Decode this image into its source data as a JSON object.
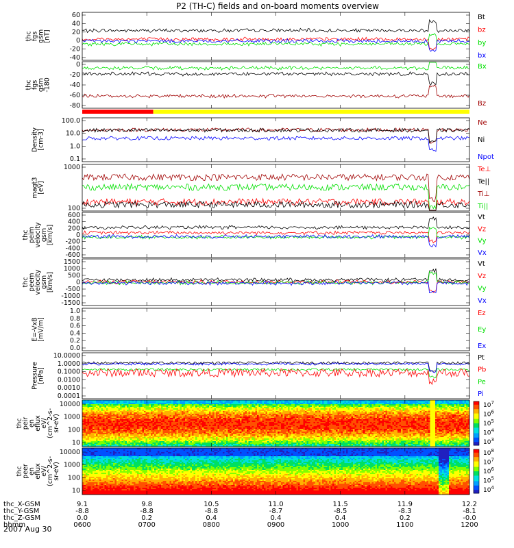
{
  "chart_data": {
    "type": "line",
    "title": "P2 (TH-C) fields and on-board moments overview",
    "colors": {
      "black": "#000000",
      "red": "#ff0000",
      "darkred": "#a00000",
      "green": "#00e000",
      "blue": "#0000ff",
      "yellow": "#ffff00"
    },
    "time": {
      "hours": [
        6,
        7,
        8,
        9,
        10,
        11,
        12
      ],
      "labels": [
        "0600",
        "0700",
        "0800",
        "0900",
        "1000",
        "1100",
        "1200"
      ]
    },
    "panels": [
      {
        "id": "fgs",
        "ylabel": [
          "thc",
          "fgs",
          "gsm",
          "[nT]"
        ],
        "yticks": [
          "60",
          "40",
          "20",
          "0",
          "-20",
          "-40"
        ],
        "ylim": [
          -40,
          60
        ],
        "legend": [
          {
            "label": "Bt",
            "color": "black"
          },
          {
            "label": "bz",
            "color": "red"
          },
          {
            "label": "by",
            "color": "green"
          },
          {
            "label": "bx",
            "color": "blue"
          }
        ],
        "series": [
          {
            "name": "Bt",
            "level": 22
          },
          {
            "name": "bz",
            "level": 4
          },
          {
            "name": "by",
            "level": -6
          },
          {
            "name": "bx",
            "level": 0
          }
        ]
      },
      {
        "id": "fgs_angle",
        "ylabel": [
          "thc",
          "fgs",
          "gsm",
          "-180"
        ],
        "yticks": [
          "0",
          "-20",
          "-40",
          "-60",
          "-80"
        ],
        "ylim": [
          -90,
          5
        ],
        "legend": [
          {
            "label": "Bx",
            "color": "green"
          },
          {
            "label": "Bz",
            "color": "darkred"
          }
        ],
        "series": [
          {
            "name": "Bx",
            "level": -8
          },
          {
            "name": "Bx2",
            "level": -20
          },
          {
            "name": "Bz",
            "level": -65
          }
        ]
      },
      {
        "id": "density",
        "ylabel": [
          "Density",
          "[cm-3]"
        ],
        "yticks": [
          "100.0",
          "10.0",
          "1.0",
          "0.1"
        ],
        "ylim": [
          0.1,
          100
        ],
        "log": true,
        "legend": [
          {
            "label": "Ne",
            "color": "darkred"
          },
          {
            "label": "Ni",
            "color": "black"
          },
          {
            "label": "Npot",
            "color": "blue"
          }
        ],
        "series": [
          {
            "name": "Ne",
            "level": 15
          },
          {
            "name": "Ni",
            "level": 14
          },
          {
            "name": "Npot",
            "level": 4
          }
        ]
      },
      {
        "id": "temperature",
        "ylabel": [
          "magt3",
          "[eV]"
        ],
        "yticks": [
          "1000",
          "100"
        ],
        "ylim": [
          40,
          2500
        ],
        "log": true,
        "legend": [
          {
            "label": "Te⊥",
            "color": "red"
          },
          {
            "label": "Te||",
            "color": "black"
          },
          {
            "label": "Ti⊥",
            "color": "darkred"
          },
          {
            "label": "Ti||",
            "color": "green"
          }
        ],
        "series": [
          {
            "name": "Ti⊥",
            "level": 800
          },
          {
            "name": "Ti||",
            "level": 330
          },
          {
            "name": "Te⊥",
            "level": 90
          },
          {
            "name": "Te||",
            "level": 70
          }
        ]
      },
      {
        "id": "peim_velocity",
        "ylabel": [
          "thc",
          "peim",
          "velocity",
          "gsm",
          "[km/s]"
        ],
        "yticks": [
          "600",
          "400",
          "200",
          "0",
          "-200",
          "-400",
          "-600"
        ],
        "ylim": [
          -600,
          600
        ],
        "legend": [
          {
            "label": "Vt",
            "color": "black"
          },
          {
            "label": "Vz",
            "color": "red"
          },
          {
            "label": "Vy",
            "color": "green"
          },
          {
            "label": "Vx",
            "color": "blue"
          }
        ],
        "series": [
          {
            "name": "Vt",
            "level": 200
          },
          {
            "name": "Vz",
            "level": 60
          },
          {
            "name": "Vy",
            "level": -60
          },
          {
            "name": "Vx",
            "level": -40
          }
        ]
      },
      {
        "id": "peem_velocity",
        "ylabel": [
          "thc",
          "peem",
          "velocity",
          "gsm",
          "[km/s]"
        ],
        "yticks": [
          "1500",
          "1000",
          "500",
          "0",
          "-500",
          "-1000",
          "-1500"
        ],
        "ylim": [
          -1500,
          1500
        ],
        "legend": [
          {
            "label": "Vt",
            "color": "black"
          },
          {
            "label": "Vz",
            "color": "red"
          },
          {
            "label": "Vy",
            "color": "green"
          },
          {
            "label": "Vx",
            "color": "blue"
          }
        ],
        "series": [
          {
            "name": "Vt",
            "level": 150
          },
          {
            "name": "Vz",
            "level": 20
          },
          {
            "name": "Vy",
            "level": -30
          },
          {
            "name": "Vx",
            "level": -60
          }
        ]
      },
      {
        "id": "efield",
        "ylabel": [
          "E=-VxB",
          "[mV/m]"
        ],
        "yticks": [
          "1.0",
          "0.8",
          "0.6",
          "0.4",
          "0.2",
          "0.0"
        ],
        "ylim": [
          0,
          1
        ],
        "legend": [
          {
            "label": "Ez",
            "color": "red"
          },
          {
            "label": "Ey",
            "color": "green"
          },
          {
            "label": "Ex",
            "color": "blue"
          }
        ],
        "series": []
      },
      {
        "id": "pressure",
        "ylabel": [
          "Pressure",
          "[nPa]"
        ],
        "yticks": [
          "10.0000",
          "1.0000",
          "0.1000",
          "0.0100",
          "0.0010",
          "0.0001"
        ],
        "ylim": [
          0.0001,
          10
        ],
        "log": true,
        "legend": [
          {
            "label": "Pt",
            "color": "black"
          },
          {
            "label": "Pb",
            "color": "red"
          },
          {
            "label": "Pe",
            "color": "green"
          },
          {
            "label": "Pi",
            "color": "blue"
          }
        ],
        "series": [
          {
            "name": "Pt",
            "level": 0.8
          },
          {
            "name": "Pi",
            "level": 0.6
          },
          {
            "name": "Pe",
            "level": 0.15
          },
          {
            "name": "Pb",
            "level": 0.1
          }
        ]
      },
      {
        "id": "peir_eflux",
        "type": "heatmap",
        "ylabel": [
          "thc",
          "peir",
          "en",
          "eflux",
          "eV/",
          "(cm^2-s-",
          "sr-eV)"
        ],
        "yticks": [
          "10000",
          "1000",
          "100",
          "10"
        ],
        "colorbar": [
          "10^7",
          "10^6",
          "10^5",
          "10^4",
          "10^3"
        ]
      },
      {
        "id": "peer_eflux",
        "type": "heatmap",
        "ylabel": [
          "thc",
          "peer",
          "en",
          "eflux",
          "eV/",
          "(cm^2-s-",
          "sr-eV)"
        ],
        "yticks": [
          "10000",
          "1000",
          "100",
          "10"
        ],
        "colorbar": [
          "10^8",
          "10^7",
          "10^6",
          "10^5",
          "10^4"
        ]
      }
    ],
    "mode_bar": [
      {
        "from": 6.0,
        "to": 7.1,
        "color": "red"
      },
      {
        "from": 7.1,
        "to": 12.0,
        "color": "yellow"
      }
    ],
    "footer": {
      "rows": [
        {
          "label": "thc_X-GSM",
          "values": [
            "9.1",
            "9.8",
            "10.5",
            "11.0",
            "11.5",
            "11.9",
            "12.2"
          ]
        },
        {
          "label": "thc_Y-GSM",
          "values": [
            "-8.8",
            "-8.8",
            "-8.8",
            "-8.7",
            "-8.5",
            "-8.3",
            "-8.1"
          ]
        },
        {
          "label": "thc_Z-GSM",
          "values": [
            "0.0",
            "0.2",
            "0.4",
            "0.4",
            "0.4",
            "0.2",
            "-0.0"
          ]
        },
        {
          "label": "hhmm",
          "values": [
            "0600",
            "0700",
            "0800",
            "0900",
            "1000",
            "1100",
            "1200"
          ]
        }
      ],
      "date": "2007 Aug 30"
    }
  }
}
